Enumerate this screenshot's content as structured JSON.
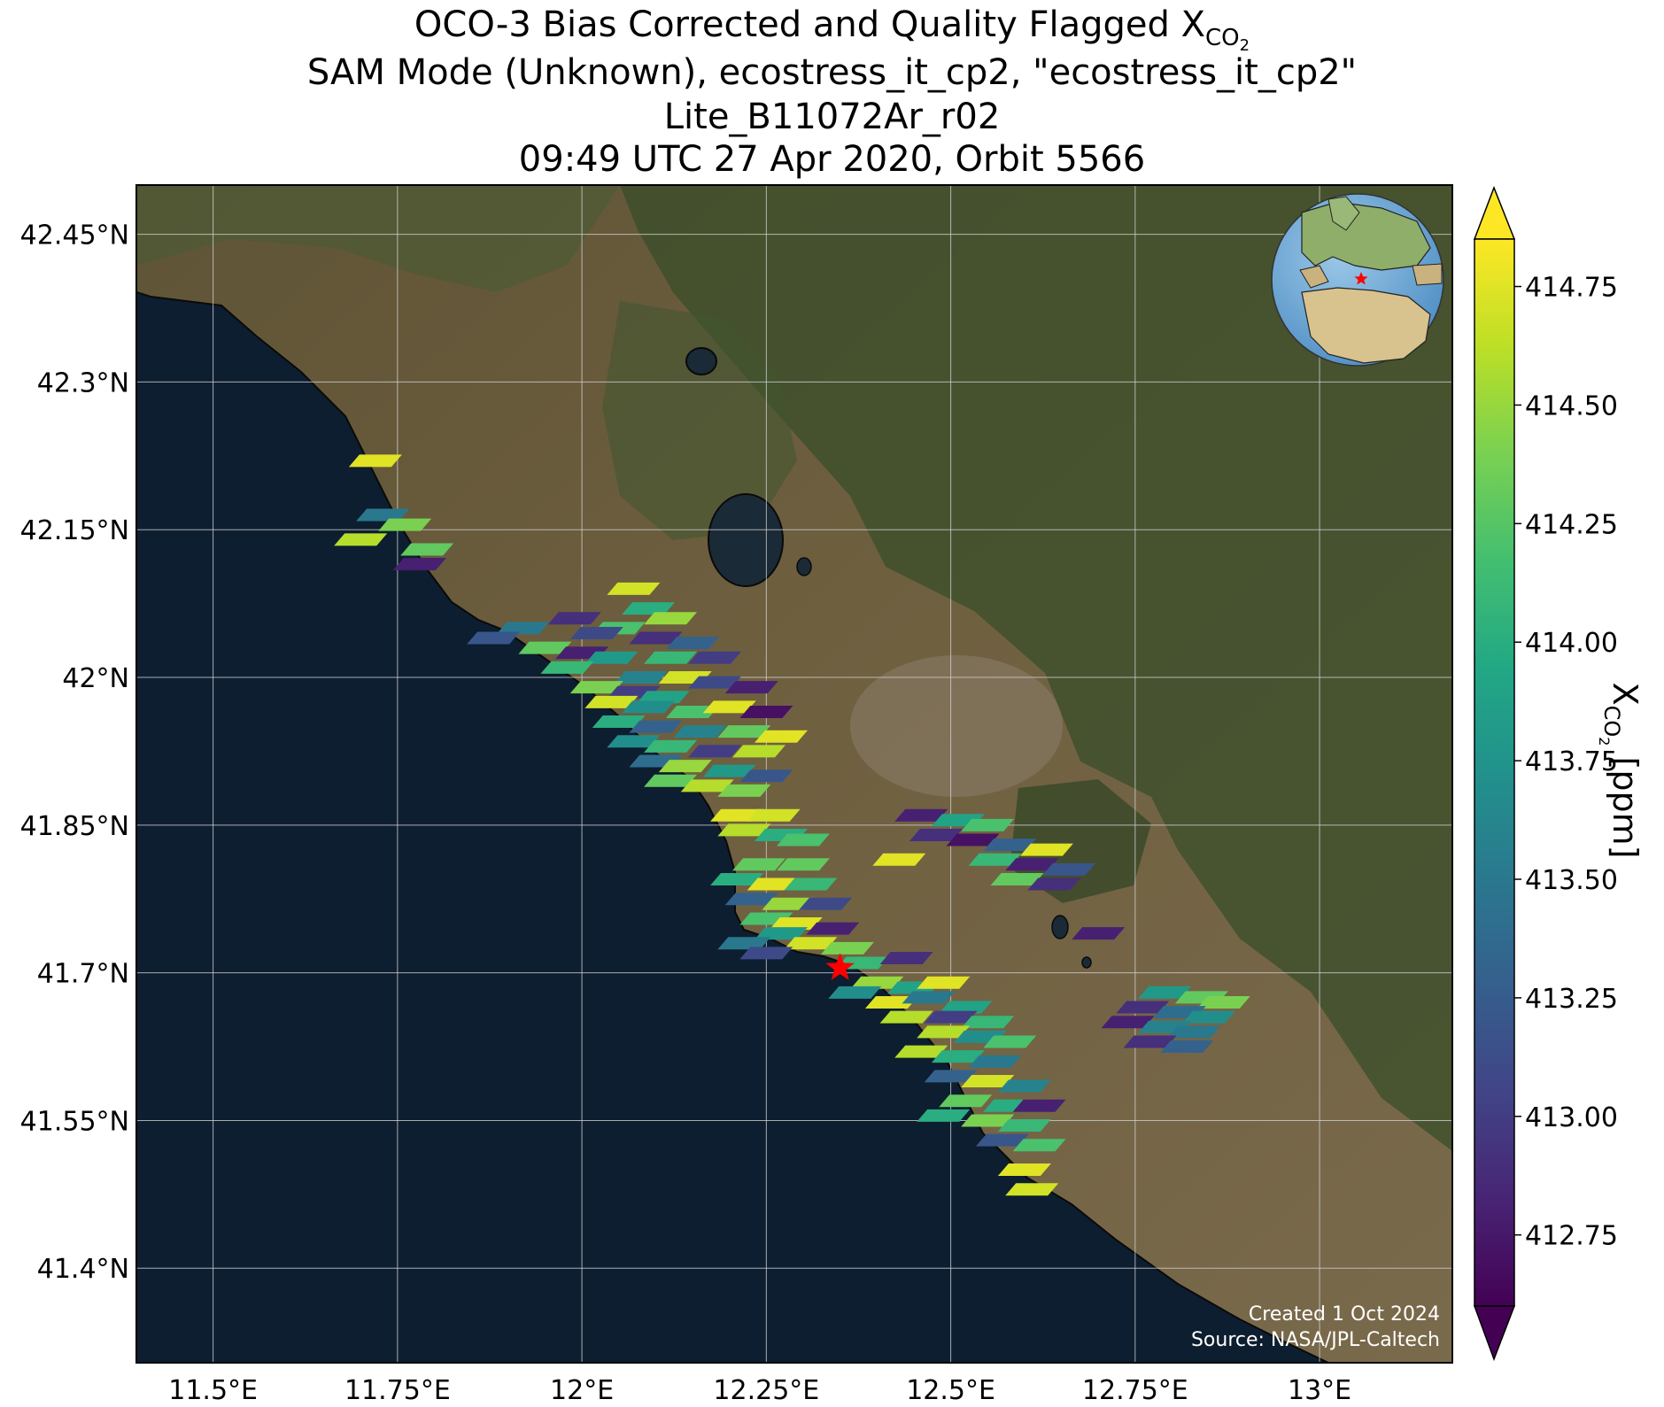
{
  "title": {
    "line1_prefix": "OCO-3 Bias Corrected and Quality Flagged X",
    "line1_sub": "CO",
    "line1_subsub": "2",
    "line2": "SAM Mode (Unknown), ecostress_it_cp2, \"ecostress_it_cp2\"",
    "line3": "Lite_B11072Ar_r02",
    "line4": "09:49 UTC 27 Apr 2020, Orbit 5566"
  },
  "credits": {
    "created": "Created 1 Oct 2024",
    "source": "Source: NASA/JPL-Caltech"
  },
  "map": {
    "lon_ticks": [
      {
        "value": 11.5,
        "label": "11.5°E"
      },
      {
        "value": 11.75,
        "label": "11.75°E"
      },
      {
        "value": 12.0,
        "label": "12°E"
      },
      {
        "value": 12.25,
        "label": "12.25°E"
      },
      {
        "value": 12.5,
        "label": "12.5°E"
      },
      {
        "value": 12.75,
        "label": "12.75°E"
      },
      {
        "value": 13.0,
        "label": "13°E"
      }
    ],
    "lat_ticks": [
      {
        "value": 42.45,
        "label": "42.45°N"
      },
      {
        "value": 42.3,
        "label": "42.3°N"
      },
      {
        "value": 42.15,
        "label": "42.15°N"
      },
      {
        "value": 42.0,
        "label": "42°N"
      },
      {
        "value": 41.85,
        "label": "41.85°N"
      },
      {
        "value": 41.7,
        "label": "41.7°N"
      },
      {
        "value": 41.55,
        "label": "41.55°N"
      },
      {
        "value": 41.4,
        "label": "41.4°N"
      }
    ],
    "lon_range": [
      11.396,
      13.18
    ],
    "lat_range": [
      41.304,
      42.5
    ],
    "target": {
      "name": "target-star",
      "lon": 12.35,
      "lat": 41.705,
      "color": "#ff0000"
    },
    "colors": {
      "sea": "#0d1e30",
      "land": "#6b5a3a",
      "forest": "#2f4a22",
      "grid": "#d0d0d0"
    }
  },
  "colorbar": {
    "label_prefix": "X",
    "label_sub": "CO",
    "label_subsub": "2",
    "label_suffix": " [ppm]",
    "range": [
      412.6,
      414.85
    ],
    "extend": "both",
    "ticks": [
      414.75,
      414.5,
      414.25,
      414.0,
      413.75,
      413.5,
      413.25,
      413.0,
      412.75
    ],
    "tick_labels": [
      "414.75",
      "414.50",
      "414.25",
      "414.00",
      "413.75",
      "413.50",
      "413.25",
      "413.00",
      "412.75"
    ],
    "colormap": "viridis"
  },
  "chart_data": {
    "type": "scatter",
    "description_units": "lon (°E), lat (°N), XCO2 (ppm)",
    "points": [
      [
        11.72,
        42.22,
        414.75
      ],
      [
        11.73,
        42.165,
        413.5
      ],
      [
        11.76,
        42.155,
        414.4
      ],
      [
        11.7,
        42.14,
        414.6
      ],
      [
        11.79,
        42.13,
        414.3
      ],
      [
        11.78,
        42.115,
        412.8
      ],
      [
        12.07,
        42.09,
        414.7
      ],
      [
        12.09,
        42.07,
        414.0
      ],
      [
        12.12,
        42.06,
        414.5
      ],
      [
        11.99,
        42.06,
        412.9
      ],
      [
        12.05,
        42.05,
        414.2
      ],
      [
        11.92,
        42.05,
        413.5
      ],
      [
        12.02,
        42.045,
        413.1
      ],
      [
        12.1,
        42.04,
        412.9
      ],
      [
        12.15,
        42.035,
        413.3
      ],
      [
        11.88,
        42.04,
        413.2
      ],
      [
        11.95,
        42.03,
        414.3
      ],
      [
        12.0,
        42.025,
        412.8
      ],
      [
        12.04,
        42.02,
        413.8
      ],
      [
        12.12,
        42.02,
        414.1
      ],
      [
        12.18,
        42.02,
        413.0
      ],
      [
        11.98,
        42.01,
        414.1
      ],
      [
        12.08,
        42.0,
        413.6
      ],
      [
        12.14,
        42.0,
        414.7
      ],
      [
        12.02,
        41.99,
        414.4
      ],
      [
        12.07,
        41.985,
        413.0
      ],
      [
        12.11,
        41.98,
        413.9
      ],
      [
        12.18,
        41.995,
        413.1
      ],
      [
        12.23,
        41.99,
        412.8
      ],
      [
        12.04,
        41.975,
        414.7
      ],
      [
        12.09,
        41.97,
        413.7
      ],
      [
        12.15,
        41.965,
        414.2
      ],
      [
        12.2,
        41.97,
        414.75
      ],
      [
        12.25,
        41.965,
        412.7
      ],
      [
        12.05,
        41.955,
        414.0
      ],
      [
        12.1,
        41.95,
        413.3
      ],
      [
        12.16,
        41.945,
        413.6
      ],
      [
        12.22,
        41.945,
        414.3
      ],
      [
        12.27,
        41.94,
        414.75
      ],
      [
        12.07,
        41.935,
        413.7
      ],
      [
        12.12,
        41.93,
        414.1
      ],
      [
        12.18,
        41.925,
        413.0
      ],
      [
        12.24,
        41.925,
        414.6
      ],
      [
        12.1,
        41.915,
        413.4
      ],
      [
        12.14,
        41.91,
        414.5
      ],
      [
        12.2,
        41.905,
        413.8
      ],
      [
        12.25,
        41.9,
        413.2
      ],
      [
        12.12,
        41.895,
        414.3
      ],
      [
        12.17,
        41.89,
        414.6
      ],
      [
        12.22,
        41.885,
        414.4
      ],
      [
        12.21,
        41.86,
        414.75
      ],
      [
        12.26,
        41.86,
        414.7
      ],
      [
        12.22,
        41.845,
        414.6
      ],
      [
        12.27,
        41.84,
        414.0
      ],
      [
        12.3,
        41.835,
        414.2
      ],
      [
        12.24,
        41.81,
        414.3
      ],
      [
        12.3,
        41.81,
        414.3
      ],
      [
        12.21,
        41.795,
        414.0
      ],
      [
        12.26,
        41.79,
        414.75
      ],
      [
        12.31,
        41.79,
        414.1
      ],
      [
        12.23,
        41.775,
        413.3
      ],
      [
        12.28,
        41.77,
        414.5
      ],
      [
        12.33,
        41.77,
        413.1
      ],
      [
        12.25,
        41.755,
        414.2
      ],
      [
        12.29,
        41.75,
        414.75
      ],
      [
        12.34,
        41.745,
        412.8
      ],
      [
        12.27,
        41.74,
        413.8
      ],
      [
        12.22,
        41.73,
        413.5
      ],
      [
        12.31,
        41.73,
        414.7
      ],
      [
        12.36,
        41.725,
        414.4
      ],
      [
        12.25,
        41.72,
        413.1
      ],
      [
        12.38,
        41.71,
        414.1
      ],
      [
        12.44,
        41.715,
        412.9
      ],
      [
        12.43,
        41.815,
        414.75
      ],
      [
        12.4,
        41.69,
        414.5
      ],
      [
        12.45,
        41.685,
        413.9
      ],
      [
        12.49,
        41.69,
        414.75
      ],
      [
        12.37,
        41.68,
        413.7
      ],
      [
        12.42,
        41.67,
        414.75
      ],
      [
        12.47,
        41.675,
        413.5
      ],
      [
        12.52,
        41.665,
        413.9
      ],
      [
        12.44,
        41.655,
        414.6
      ],
      [
        12.5,
        41.655,
        413.0
      ],
      [
        12.55,
        41.65,
        414.1
      ],
      [
        12.49,
        41.64,
        414.6
      ],
      [
        12.54,
        41.635,
        413.7
      ],
      [
        12.58,
        41.63,
        414.2
      ],
      [
        12.46,
        41.62,
        414.6
      ],
      [
        12.51,
        41.615,
        414.0
      ],
      [
        12.56,
        41.61,
        413.5
      ],
      [
        12.5,
        41.595,
        413.3
      ],
      [
        12.55,
        41.59,
        414.7
      ],
      [
        12.6,
        41.585,
        413.6
      ],
      [
        12.52,
        41.57,
        414.3
      ],
      [
        12.58,
        41.565,
        414.0
      ],
      [
        12.62,
        41.565,
        412.8
      ],
      [
        12.49,
        41.555,
        414.0
      ],
      [
        12.55,
        41.55,
        414.4
      ],
      [
        12.6,
        41.545,
        414.1
      ],
      [
        12.57,
        41.53,
        413.2
      ],
      [
        12.62,
        41.525,
        414.2
      ],
      [
        12.6,
        41.5,
        414.75
      ],
      [
        12.61,
        41.48,
        414.7
      ],
      [
        12.46,
        41.86,
        412.8
      ],
      [
        12.51,
        41.855,
        413.9
      ],
      [
        12.55,
        41.85,
        414.2
      ],
      [
        12.48,
        41.84,
        412.9
      ],
      [
        12.53,
        41.835,
        412.7
      ],
      [
        12.58,
        41.83,
        413.3
      ],
      [
        12.63,
        41.825,
        414.75
      ],
      [
        12.56,
        41.815,
        414.1
      ],
      [
        12.61,
        41.81,
        412.8
      ],
      [
        12.66,
        41.805,
        413.2
      ],
      [
        12.59,
        41.795,
        414.3
      ],
      [
        12.64,
        41.79,
        412.9
      ],
      [
        12.7,
        41.74,
        412.8
      ],
      [
        12.79,
        41.68,
        413.8
      ],
      [
        12.84,
        41.675,
        414.3
      ],
      [
        12.87,
        41.67,
        414.4
      ],
      [
        12.76,
        41.665,
        412.9
      ],
      [
        12.81,
        41.66,
        413.4
      ],
      [
        12.85,
        41.655,
        413.7
      ],
      [
        12.74,
        41.65,
        412.8
      ],
      [
        12.79,
        41.645,
        413.6
      ],
      [
        12.83,
        41.64,
        413.5
      ],
      [
        12.77,
        41.63,
        412.9
      ],
      [
        12.82,
        41.625,
        413.3
      ]
    ]
  }
}
